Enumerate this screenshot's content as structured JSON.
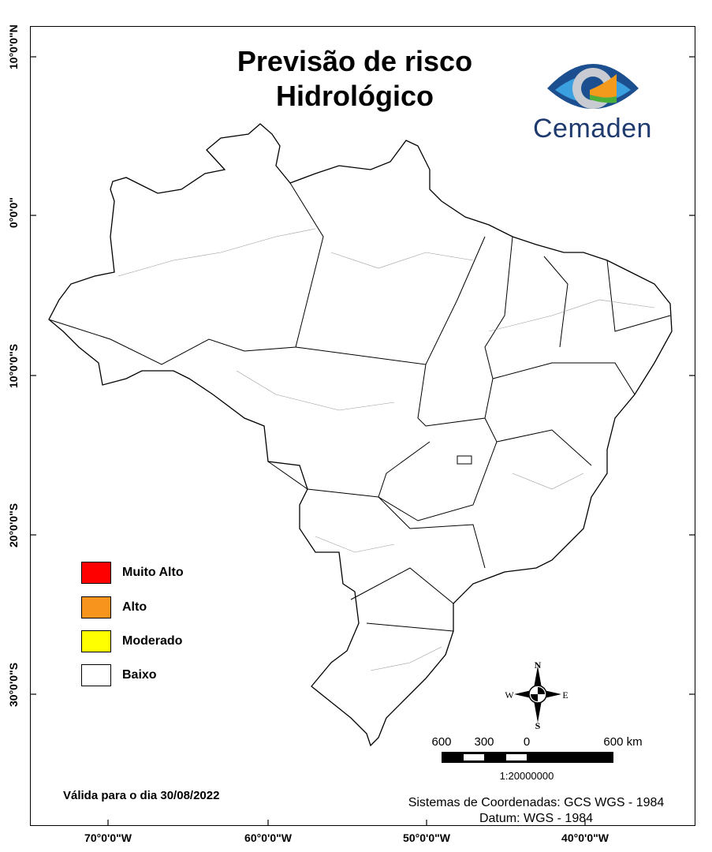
{
  "title_line1": "Previsão de risco",
  "title_line2": "Hidrológico",
  "logo": {
    "text": "Cemaden"
  },
  "axes": {
    "latitude_labels": [
      "10°0'0\"N",
      "0°0'0\"",
      "10°0'0\"S",
      "20°0'0\"S",
      "30°0'0\"S"
    ],
    "longitude_labels": [
      "70°0'0\"W",
      "60°0'0\"W",
      "50°0'0\"W",
      "40°0'0\"W"
    ]
  },
  "legend": [
    {
      "label": "Muito Alto",
      "color": "#ff0000"
    },
    {
      "label": "Alto",
      "color": "#f7941d"
    },
    {
      "label": "Moderado",
      "color": "#ffff00"
    },
    {
      "label": "Baixo",
      "color": "#ffffff"
    }
  ],
  "compass": {
    "n": "N",
    "s": "S",
    "e": "E",
    "w": "W"
  },
  "scale": {
    "labels": [
      "600",
      "300",
      "0",
      "600 km"
    ],
    "ratio": "1:20000000"
  },
  "valid_text": "Válida para o dia 30/08/2022",
  "coord_system": "Sistemas de Coordenadas: GCS WGS - 1984",
  "datum": "Datum: WGS - 1984"
}
